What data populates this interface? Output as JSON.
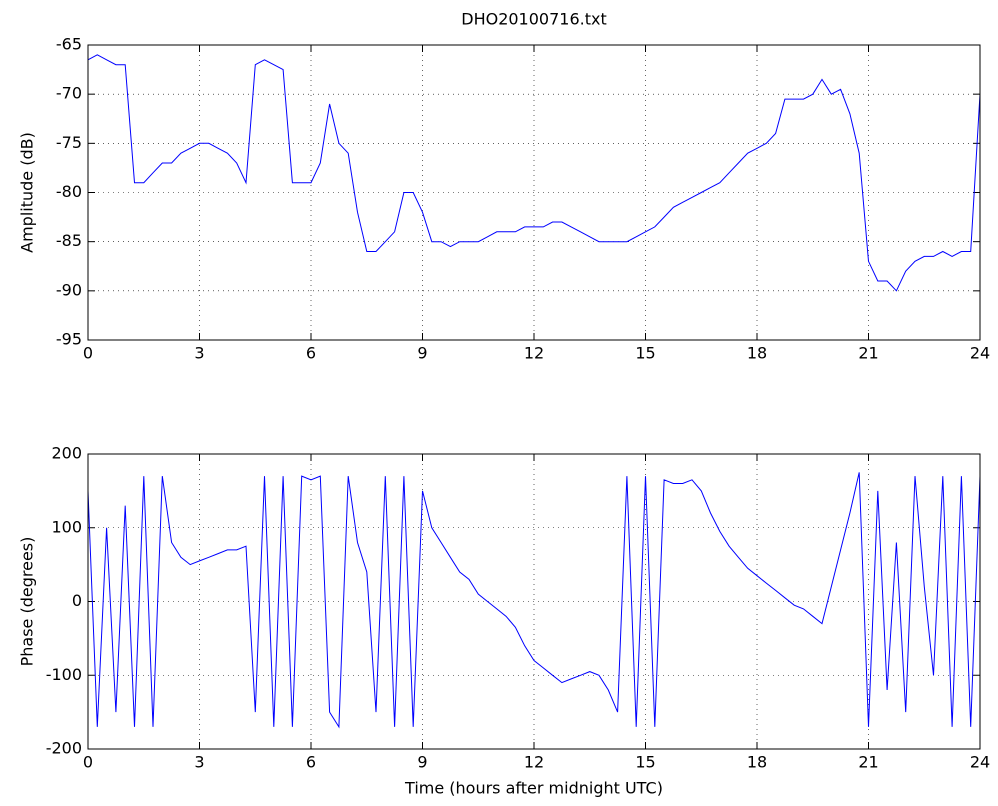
{
  "chart_data": [
    {
      "type": "line",
      "title": "DHO20100716.txt",
      "ylabel": "Amplitude (dB)",
      "color": "#0000ff",
      "grid": true,
      "x": [
        0,
        0.25,
        0.5,
        0.75,
        1,
        1.25,
        1.5,
        1.75,
        2,
        2.25,
        2.5,
        2.75,
        3,
        3.25,
        3.5,
        3.75,
        4,
        4.25,
        4.5,
        4.75,
        5,
        5.25,
        5.5,
        5.75,
        6,
        6.25,
        6.5,
        6.75,
        7,
        7.25,
        7.5,
        7.75,
        8,
        8.25,
        8.5,
        8.75,
        9,
        9.25,
        9.5,
        9.75,
        10,
        10.25,
        10.5,
        10.75,
        11,
        11.25,
        11.5,
        11.75,
        12,
        12.25,
        12.5,
        12.75,
        13,
        13.25,
        13.5,
        13.75,
        14,
        14.25,
        14.5,
        14.75,
        15,
        15.25,
        15.5,
        15.75,
        16,
        16.25,
        16.5,
        16.75,
        17,
        17.25,
        17.5,
        17.75,
        18,
        18.25,
        18.5,
        18.75,
        19,
        19.25,
        19.5,
        19.75,
        20,
        20.25,
        20.5,
        20.75,
        21,
        21.25,
        21.5,
        21.75,
        22,
        22.25,
        22.5,
        22.75,
        23,
        23.25,
        23.5,
        23.75,
        24
      ],
      "values": [
        -66.5,
        -66,
        -66.5,
        -67,
        -67,
        -79,
        -79,
        -78,
        -77,
        -77,
        -76,
        -75.5,
        -75,
        -75,
        -75.5,
        -76,
        -77,
        -79,
        -67,
        -66.5,
        -67,
        -67.5,
        -79,
        -79,
        -79,
        -77,
        -71,
        -75,
        -76,
        -82,
        -86,
        -86,
        -85,
        -84,
        -80,
        -80,
        -82,
        -85,
        -85,
        -85.5,
        -85,
        -85,
        -85,
        -84.5,
        -84,
        -84,
        -84,
        -83.5,
        -83.5,
        -83.5,
        -83,
        -83,
        -83.5,
        -84,
        -84.5,
        -85,
        -85,
        -85,
        -85,
        -84.5,
        -84,
        -83.5,
        -82.5,
        -81.5,
        -81,
        -80.5,
        -80,
        -79.5,
        -79,
        -78,
        -77,
        -76,
        -75.5,
        -75,
        -74,
        -70.5,
        -70.5,
        -70.5,
        -70,
        -68.5,
        -70,
        -69.5,
        -72,
        -76,
        -87,
        -89,
        -89,
        -90,
        -88,
        -87,
        -86.5,
        -86.5,
        -86,
        -86.5,
        -86,
        -86,
        -70
      ],
      "xlim": [
        0,
        24
      ],
      "xticks": [
        0,
        3,
        6,
        9,
        12,
        15,
        18,
        21,
        24
      ],
      "ylim": [
        -95,
        -65
      ],
      "yticks": [
        -95,
        -90,
        -85,
        -80,
        -75,
        -70,
        -65
      ]
    },
    {
      "type": "line",
      "xlabel": "Time (hours after midnight UTC)",
      "ylabel": "Phase (degrees)",
      "color": "#0000ff",
      "grid": true,
      "x": [
        0,
        0.25,
        0.5,
        0.75,
        1,
        1.25,
        1.5,
        1.75,
        2,
        2.25,
        2.5,
        2.75,
        3,
        3.25,
        3.5,
        3.75,
        4,
        4.25,
        4.5,
        4.75,
        5,
        5.25,
        5.5,
        5.75,
        6,
        6.25,
        6.5,
        6.75,
        7,
        7.25,
        7.5,
        7.75,
        8,
        8.25,
        8.5,
        8.75,
        9,
        9.25,
        9.5,
        9.75,
        10,
        10.25,
        10.5,
        10.75,
        11,
        11.25,
        11.5,
        11.75,
        12,
        12.25,
        12.5,
        12.75,
        13,
        13.25,
        13.5,
        13.75,
        14,
        14.25,
        14.5,
        14.75,
        15,
        15.25,
        15.5,
        15.75,
        16,
        16.25,
        16.5,
        16.75,
        17,
        17.25,
        17.5,
        17.75,
        18,
        18.25,
        18.5,
        18.75,
        19,
        19.25,
        19.5,
        19.75,
        20,
        20.25,
        20.5,
        20.75,
        21,
        21.25,
        21.5,
        21.75,
        22,
        22.25,
        22.5,
        22.75,
        23,
        23.25,
        23.5,
        23.75,
        24
      ],
      "values": [
        150,
        -170,
        100,
        -150,
        130,
        -170,
        170,
        -170,
        170,
        80,
        60,
        50,
        55,
        60,
        65,
        70,
        70,
        75,
        -150,
        170,
        -170,
        170,
        -170,
        170,
        165,
        170,
        -150,
        -170,
        170,
        80,
        40,
        -150,
        170,
        -170,
        170,
        -170,
        150,
        100,
        80,
        60,
        40,
        30,
        10,
        0,
        -10,
        -20,
        -35,
        -60,
        -80,
        -90,
        -100,
        -110,
        -105,
        -100,
        -95,
        -100,
        -120,
        -150,
        170,
        -170,
        170,
        -170,
        165,
        160,
        160,
        165,
        150,
        120,
        95,
        75,
        60,
        45,
        35,
        25,
        15,
        5,
        -5,
        -10,
        -20,
        -30,
        20,
        70,
        120,
        175,
        -170,
        150,
        -120,
        80,
        -150,
        170,
        20,
        -100,
        170,
        -170,
        170,
        -170,
        170
      ],
      "xlim": [
        0,
        24
      ],
      "xticks": [
        0,
        3,
        6,
        9,
        12,
        15,
        18,
        21,
        24
      ],
      "ylim": [
        -200,
        200
      ],
      "yticks": [
        -200,
        -100,
        0,
        100,
        200
      ]
    }
  ]
}
